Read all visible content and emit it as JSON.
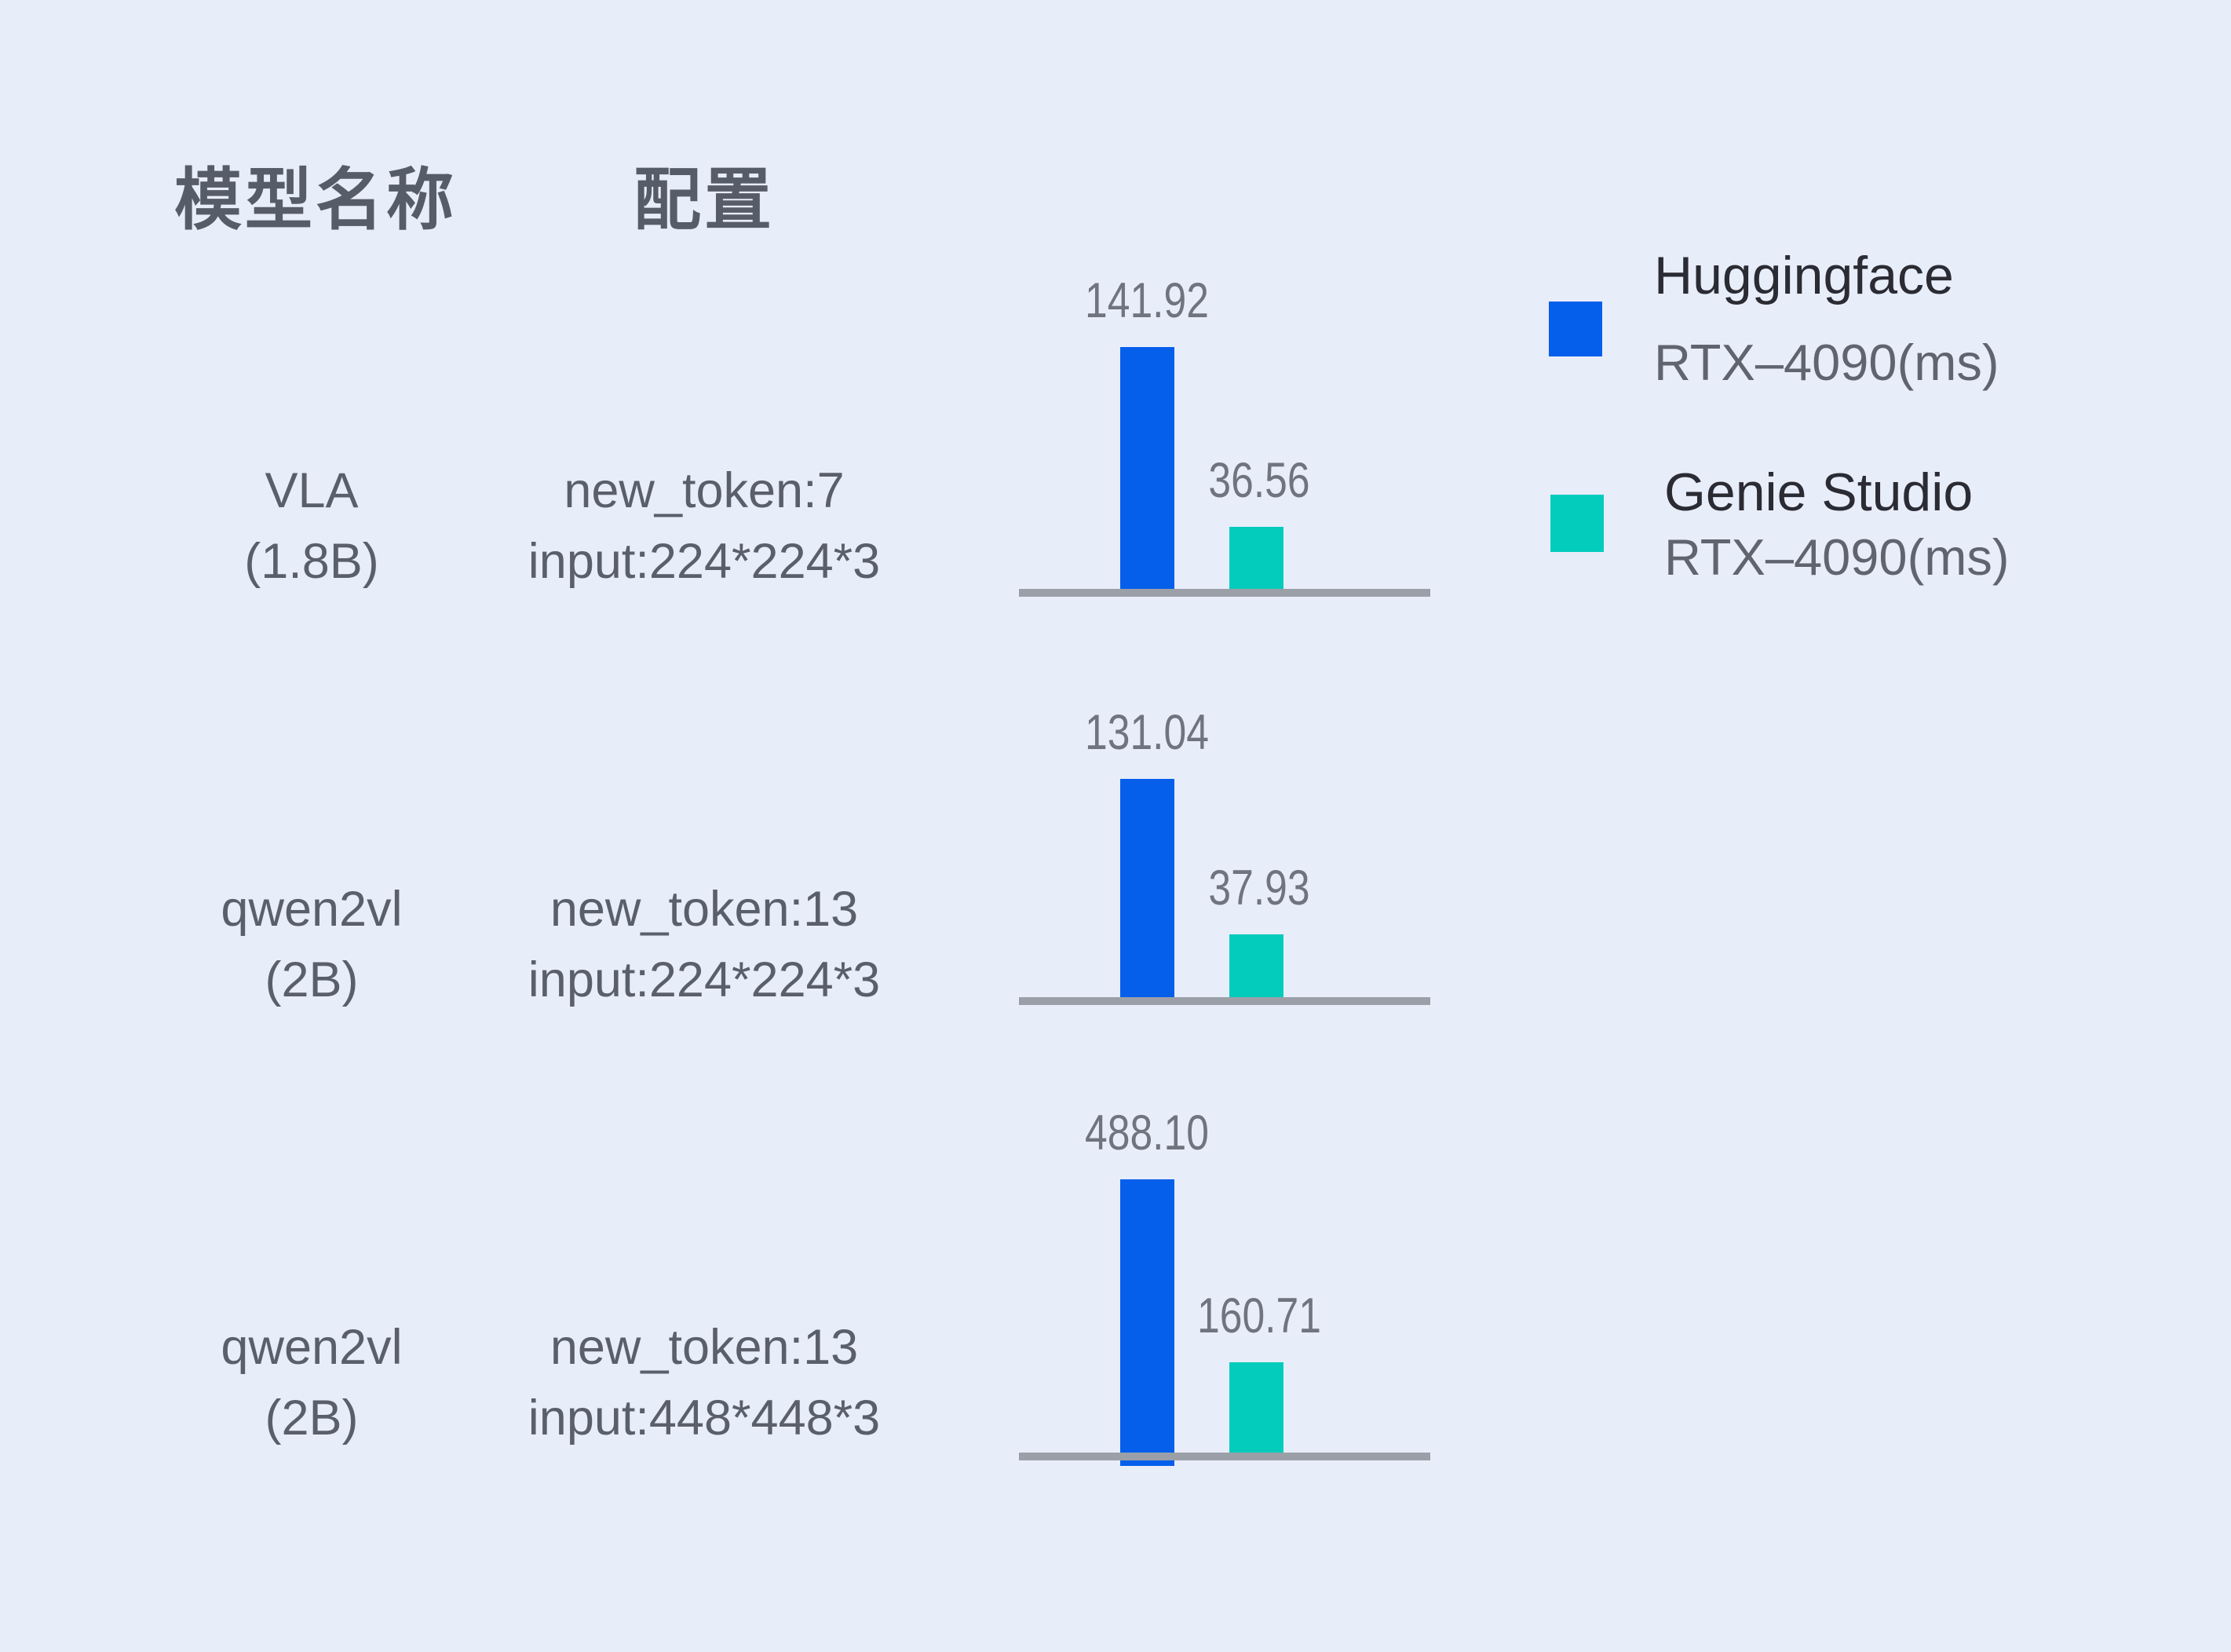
{
  "page": {
    "background_color": "#E8EDFA",
    "axis_color": "#9BA0A8"
  },
  "table": {
    "headers": [
      {
        "label": "模型名称"
      },
      {
        "label": "配置"
      }
    ],
    "rows": [
      {
        "model_name": "VLA",
        "model_size": "(1.8B)",
        "config_line1": "new_token:7",
        "config_line2": "input:224*224*3",
        "huggingface_ms": "141.92",
        "genie_ms": "36.56"
      },
      {
        "model_name": "qwen2vl",
        "model_size": "(2B)",
        "config_line1": "new_token:13",
        "config_line2": "input:224*224*3",
        "huggingface_ms": "131.04",
        "genie_ms": "37.93"
      },
      {
        "model_name": "qwen2vl",
        "model_size": "(2B)",
        "config_line1": "new_token:13",
        "config_line2": "input:448*448*3",
        "huggingface_ms": "488.10",
        "genie_ms": "160.71"
      }
    ]
  },
  "legend": {
    "huggingface": {
      "line1": "Huggingface",
      "line2": "RTX–4090(ms)",
      "color": "#065FEB"
    },
    "genie": {
      "line1": "Genie Studio",
      "line2": "RTX–4090(ms)",
      "color": "#04CCBC"
    }
  },
  "chart_data": {
    "type": "bar",
    "title": "",
    "categories": [
      "VLA (1.8B) | new_token:7 input:224*224*3",
      "qwen2vl (2B) | new_token:13 input:224*224*3",
      "qwen2vl (2B) | new_token:13 input:448*448*3"
    ],
    "series": [
      {
        "name": "Huggingface RTX–4090(ms)",
        "color": "#065FEB",
        "values": [
          141.92,
          131.04,
          488.1
        ]
      },
      {
        "name": "Genie Studio RTX–4090(ms)",
        "color": "#04CCBC",
        "values": [
          36.56,
          37.93,
          160.71
        ]
      }
    ],
    "value_labels_shown": true,
    "layout": "three separate per-row mini bar charts, each with its own gray baseline, no y-axis, values printed above bars",
    "legend_position": "top-right"
  }
}
